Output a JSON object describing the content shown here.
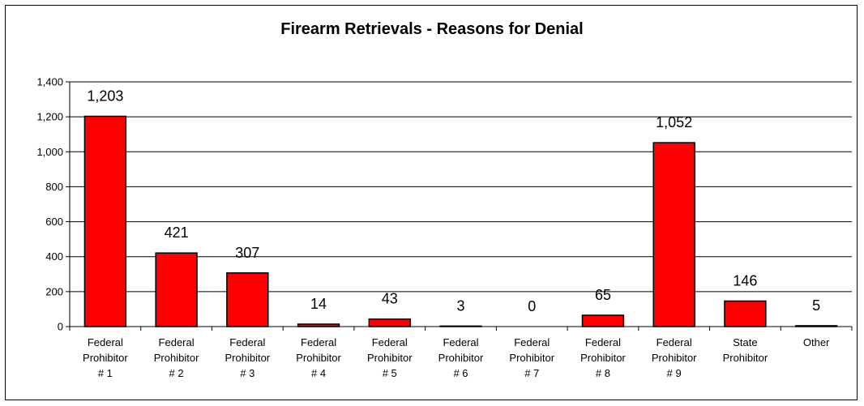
{
  "chart_data": {
    "type": "bar",
    "title": "Firearm Retrievals - Reasons for Denial",
    "xlabel": "",
    "ylabel": "",
    "categories": [
      [
        "Federal",
        "Prohibitor",
        "# 1"
      ],
      [
        "Federal",
        "Prohibitor",
        "# 2"
      ],
      [
        "Federal",
        "Prohibitor",
        "# 3"
      ],
      [
        "Federal",
        "Prohibitor",
        "# 4"
      ],
      [
        "Federal",
        "Prohibitor",
        "# 5"
      ],
      [
        "Federal",
        "Prohibitor",
        "# 6"
      ],
      [
        "Federal",
        "Prohibitor",
        "# 7"
      ],
      [
        "Federal",
        "Prohibitor",
        "# 8"
      ],
      [
        "Federal",
        "Prohibitor",
        "# 9"
      ],
      [
        "State",
        "Prohibitor"
      ],
      [
        "Other"
      ]
    ],
    "values": [
      1203,
      421,
      307,
      14,
      43,
      3,
      0,
      65,
      1052,
      146,
      5
    ],
    "value_labels": [
      "1,203",
      "421",
      "307",
      "14",
      "43",
      "3",
      "0",
      "65",
      "1,052",
      "146",
      "5"
    ],
    "ylim": [
      0,
      1400
    ],
    "yticks": [
      0,
      200,
      400,
      600,
      800,
      1000,
      1200,
      1400
    ],
    "ytick_labels": [
      "0",
      "200",
      "400",
      "600",
      "800",
      "1,000",
      "1,200",
      "1,400"
    ],
    "grid": true,
    "legend": "none",
    "colors": {
      "bar_fill": "#ff0000",
      "bar_stroke": "#000000",
      "grid": "#000000"
    }
  }
}
